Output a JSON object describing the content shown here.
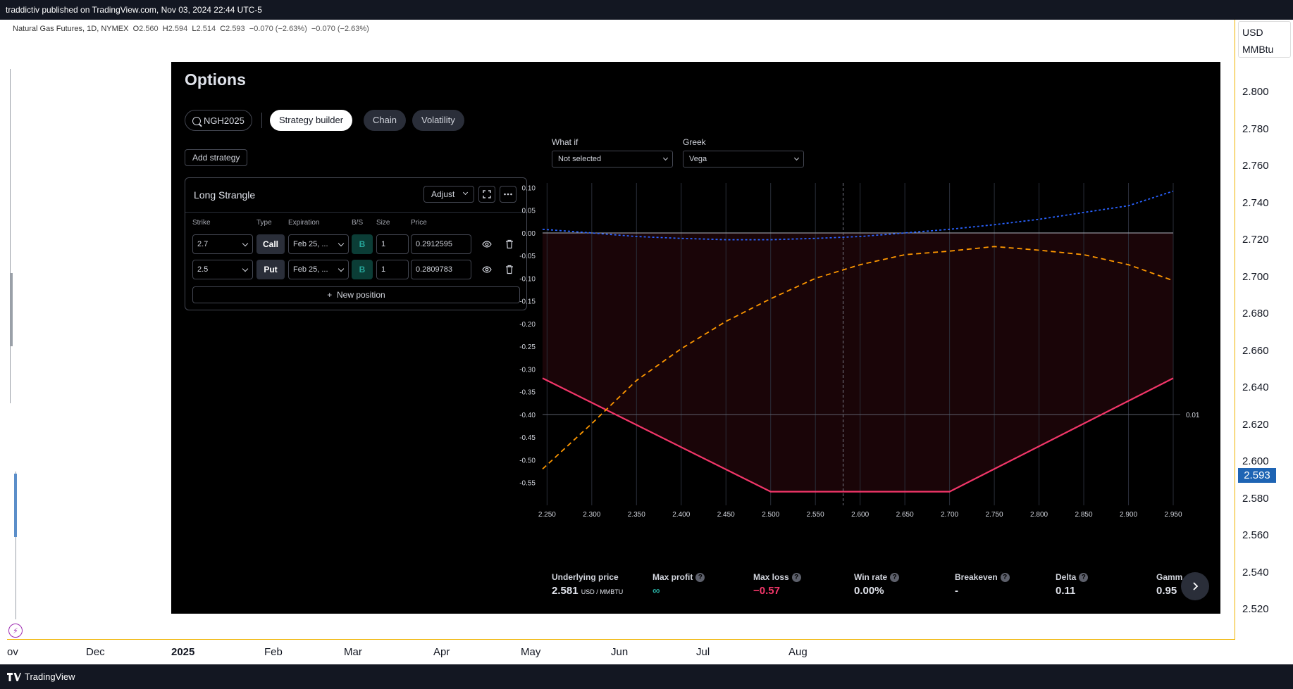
{
  "topbar": {
    "text": "traddictiv published on TradingView.com, Nov 03, 2024 22:44 UTC-5"
  },
  "legend": {
    "symbol": "Natural Gas Futures, 1D, NYMEX",
    "o_label": "O",
    "o": "2.560",
    "h_label": "H",
    "h": "2.594",
    "l_label": "L",
    "l": "2.514",
    "c_label": "C",
    "c": "2.593",
    "change": "−0.070 (−2.63%)",
    "change2": "−0.070 (−2.63%)"
  },
  "price_axis": {
    "currency": "USD",
    "unit": "MMBtu",
    "ticks": [
      "2.800",
      "2.780",
      "2.760",
      "2.740",
      "2.720",
      "2.700",
      "2.680",
      "2.660",
      "2.640",
      "2.620",
      "2.600",
      "2.580",
      "2.560",
      "2.540",
      "2.520"
    ],
    "current": "2.593"
  },
  "time_axis": {
    "ticks": [
      "ov",
      "Dec",
      "2025",
      "Feb",
      "Mar",
      "Apr",
      "May",
      "Jun",
      "Jul",
      "Aug"
    ]
  },
  "options": {
    "title": "Options",
    "search_value": "NGH2025",
    "tabs": [
      "Strategy builder",
      "Chain",
      "Volatility"
    ],
    "add_strategy": "Add strategy",
    "strategy": {
      "name": "Long Strangle",
      "adjust": "Adjust",
      "headers": [
        "Strike",
        "Type",
        "Expiration",
        "B/S",
        "Size",
        "Price"
      ],
      "rows": [
        {
          "strike": "2.7",
          "type": "Call",
          "expiration": "Feb 25, ...",
          "bs": "B",
          "size": "1",
          "price": "0.2912595"
        },
        {
          "strike": "2.5",
          "type": "Put",
          "expiration": "Feb 25, ...",
          "bs": "B",
          "size": "1",
          "price": "0.2809783"
        }
      ],
      "new_position": "New position"
    },
    "what_if": {
      "label": "What if",
      "value": "Not selected"
    },
    "greek": {
      "label": "Greek",
      "value": "Vega"
    },
    "stats": {
      "underlying_label": "Underlying price",
      "underlying_value": "2.581",
      "underlying_unit": "USD / MMBTU",
      "max_profit_label": "Max profit",
      "max_profit_value": "∞",
      "max_loss_label": "Max loss",
      "max_loss_value": "−0.57",
      "win_rate_label": "Win rate",
      "win_rate_value": "0.00%",
      "breakeven_label": "Breakeven",
      "breakeven_value": "-",
      "delta_label": "Delta",
      "delta_value": "0.11",
      "gamma_label": "Gamm",
      "gamma_value": "0.95"
    },
    "colors": {
      "pnl": "#f23669",
      "greek": "#ff9800",
      "profit_curve": "#2962ff",
      "loss_fill": "#1a0508"
    }
  },
  "chart_data": {
    "type": "line",
    "x_ticks": [
      "2.250",
      "2.300",
      "2.350",
      "2.400",
      "2.450",
      "2.500",
      "2.550",
      "2.600",
      "2.650",
      "2.700",
      "2.750",
      "2.800",
      "2.850",
      "2.900",
      "2.950"
    ],
    "y_ticks": [
      "0.10",
      "0.05",
      "0.00",
      "-0.05",
      "-0.10",
      "-0.15",
      "-0.20",
      "-0.25",
      "-0.30",
      "-0.35",
      "-0.40",
      "-0.45",
      "-0.50",
      "-0.55"
    ],
    "xlim": [
      2.245,
      2.95
    ],
    "ylim": [
      -0.6,
      0.11
    ],
    "current_underlying": 2.581,
    "right_label": "0.01",
    "right_label_y": -0.4,
    "series": [
      {
        "style": "solid",
        "x": [
          2.245,
          2.5,
          2.7,
          2.95
        ],
        "y": [
          -0.32,
          -0.57,
          -0.57,
          -0.32
        ]
      },
      {
        "style": "dashed",
        "x": [
          2.245,
          2.3,
          2.35,
          2.4,
          2.45,
          2.5,
          2.55,
          2.6,
          2.65,
          2.7,
          2.75,
          2.8,
          2.85,
          2.9,
          2.95
        ],
        "y": [
          -0.52,
          -0.42,
          -0.325,
          -0.255,
          -0.195,
          -0.145,
          -0.1,
          -0.07,
          -0.048,
          -0.04,
          -0.03,
          -0.038,
          -0.048,
          -0.07,
          -0.105
        ]
      },
      {
        "style": "dotted",
        "x": [
          2.245,
          2.3,
          2.35,
          2.4,
          2.45,
          2.5,
          2.55,
          2.6,
          2.65,
          2.7,
          2.75,
          2.8,
          2.85,
          2.9,
          2.95
        ],
        "y": [
          0.008,
          0.0,
          -0.008,
          -0.012,
          -0.015,
          -0.015,
          -0.012,
          -0.008,
          0.0,
          0.008,
          0.018,
          0.03,
          0.045,
          0.06,
          0.092
        ]
      }
    ]
  }
}
